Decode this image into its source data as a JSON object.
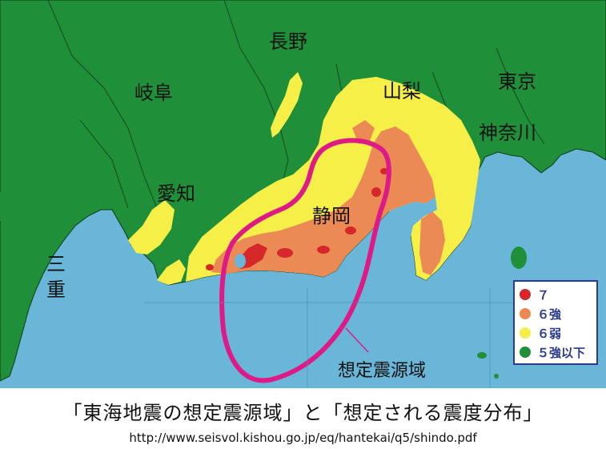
{
  "map": {
    "prefectures": {
      "nagano": "長野",
      "gifu": "岐阜",
      "yamanashi": "山梨",
      "tokyo": "東京",
      "kanagawa": "神奈川",
      "aichi": "愛知",
      "shizuoka": "静岡",
      "mie": "三重"
    },
    "source_area_label": "想定震源域",
    "colors": {
      "sea": "#6ab6d8",
      "land": "#1f8f3a",
      "shindo_7": "#d6282a",
      "shindo_6_upper": "#ec8a55",
      "shindo_6_lower": "#f6ef48",
      "shindo_5_upper_or_less": "#1f8f3a",
      "source_area_outline": "#dd1a86",
      "legend_border": "#2a3a8c"
    },
    "legend": [
      {
        "label": "７",
        "color": "#d6282a",
        "icon": "red-dot"
      },
      {
        "label": "６強",
        "color": "#ec8a55",
        "icon": "orange-dot"
      },
      {
        "label": "６弱",
        "color": "#f6ef48",
        "icon": "yellow-dot"
      },
      {
        "label": "５強以下",
        "color": "#1f8f3a",
        "icon": "green-dot"
      }
    ]
  },
  "caption": {
    "title": "「東海地震の想定震源域」と「想定される震度分布」",
    "url": "http://www.seisvol.kishou.go.jp/eq/hantekai/q5/shindo.pdf"
  }
}
